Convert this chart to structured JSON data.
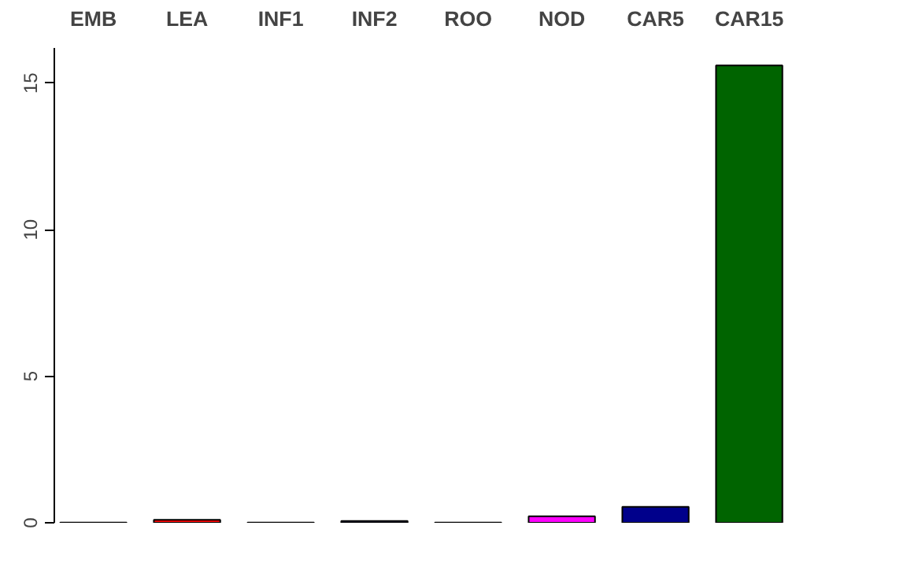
{
  "chart_data": {
    "type": "bar",
    "categories": [
      "EMB",
      "LEA",
      "INF1",
      "INF2",
      "ROO",
      "NOD",
      "CAR5",
      "CAR15"
    ],
    "values": [
      0.01,
      0.1,
      0.01,
      0.06,
      0.01,
      0.22,
      0.54,
      15.6
    ],
    "colors": [
      "#000000",
      "#ff0000",
      "#006400",
      "#00008b",
      "#8b0000",
      "#ff00ff",
      "#00008b",
      "#006400"
    ],
    "ylim": [
      0,
      16.2
    ],
    "yticks": [
      0,
      5,
      10,
      15
    ],
    "grid": false
  }
}
